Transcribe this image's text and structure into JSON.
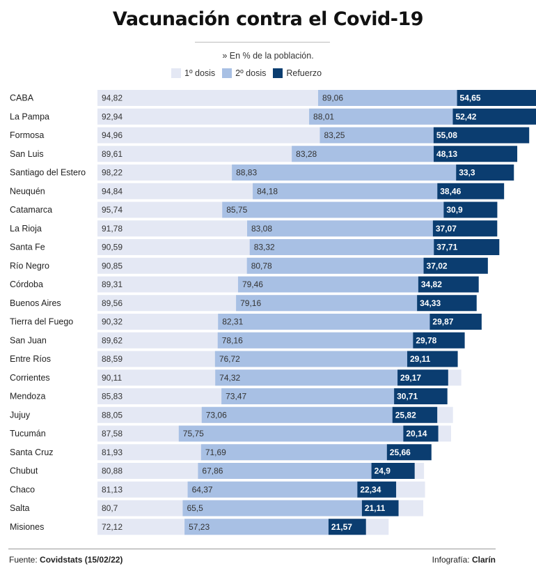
{
  "header": {
    "title": "Vacunación contra el Covid-19",
    "subtitle": "» En % de la población."
  },
  "legend": [
    {
      "label": "1º dosis",
      "color": "#e4e8f4"
    },
    {
      "label": "2º dosis",
      "color": "#a8c0e4"
    },
    {
      "label": "Refuerzo",
      "color": "#0b3d70"
    }
  ],
  "footer": {
    "source_prefix": "Fuente: ",
    "source_value": "Covidstats (15/02/22)",
    "credit_prefix": "Infografía: ",
    "credit_value": "Clarín"
  },
  "chart_data": {
    "type": "bar",
    "orientation": "horizontal",
    "layout": "overlapping",
    "xlim": [
      0,
      100
    ],
    "categories": [
      "CABA",
      "La Pampa",
      "Formosa",
      "San Luis",
      "Santiago del Estero",
      "Neuquén",
      "Catamarca",
      "La Rioja",
      "Santa Fe",
      "Río Negro",
      "Córdoba",
      "Buenos Aires",
      "Tierra del Fuego",
      "San Juan",
      "Entre Ríos",
      "Corrientes",
      "Mendoza",
      "Jujuy",
      "Tucumán",
      "Santa Cruz",
      "Chubut",
      "Chaco",
      "Salta",
      "Misiones"
    ],
    "series": [
      {
        "name": "1º dosis",
        "color": "#e4e8f4",
        "values": [
          94.82,
          92.94,
          94.96,
          89.61,
          98.22,
          94.84,
          95.74,
          91.78,
          90.59,
          90.85,
          89.31,
          89.56,
          90.32,
          89.62,
          88.59,
          90.11,
          85.83,
          88.05,
          87.58,
          81.93,
          80.88,
          81.13,
          80.7,
          72.12
        ],
        "labels": [
          "94,82",
          "92,94",
          "94,96",
          "89,61",
          "98,22",
          "94,84",
          "95,74",
          "91,78",
          "90,59",
          "90,85",
          "89,31",
          "89,56",
          "90,32",
          "89,62",
          "88,59",
          "90,11",
          "85,83",
          "88,05",
          "87,58",
          "81,93",
          "80,88",
          "81,13",
          "80,7",
          "72,12"
        ]
      },
      {
        "name": "2º dosis",
        "color": "#a8c0e4",
        "values": [
          89.06,
          88.01,
          83.25,
          83.28,
          88.83,
          84.18,
          85.75,
          83.08,
          83.32,
          80.78,
          79.46,
          79.16,
          82.31,
          78.16,
          76.72,
          74.32,
          73.47,
          73.06,
          75.75,
          71.69,
          67.86,
          64.37,
          65.5,
          57.23
        ],
        "labels": [
          "89,06",
          "88,01",
          "83,25",
          "83,28",
          "88,83",
          "84,18",
          "85,75",
          "83,08",
          "83,32",
          "80,78",
          "79,46",
          "79,16",
          "82,31",
          "78,16",
          "76,72",
          "74,32",
          "73,47",
          "73,06",
          "75,75",
          "71,69",
          "67,86",
          "64,37",
          "65,5",
          "57,23"
        ]
      },
      {
        "name": "Refuerzo",
        "color": "#0b3d70",
        "values": [
          54.65,
          52.42,
          55.08,
          48.13,
          33.3,
          38.46,
          30.9,
          37.07,
          37.71,
          37.02,
          34.82,
          34.33,
          29.87,
          29.78,
          29.11,
          29.17,
          30.71,
          25.82,
          20.14,
          25.66,
          24.9,
          22.34,
          21.11,
          21.57
        ],
        "labels": [
          "54,65",
          "52,42",
          "55,08",
          "48,13",
          "33,3",
          "38,46",
          "30,9",
          "37,07",
          "37,71",
          "37,02",
          "34,82",
          "34,33",
          "29,87",
          "29,78",
          "29,11",
          "29,17",
          "30,71",
          "25,82",
          "20,14",
          "25,66",
          "24,9",
          "22,34",
          "21,11",
          "21,57"
        ]
      }
    ]
  }
}
